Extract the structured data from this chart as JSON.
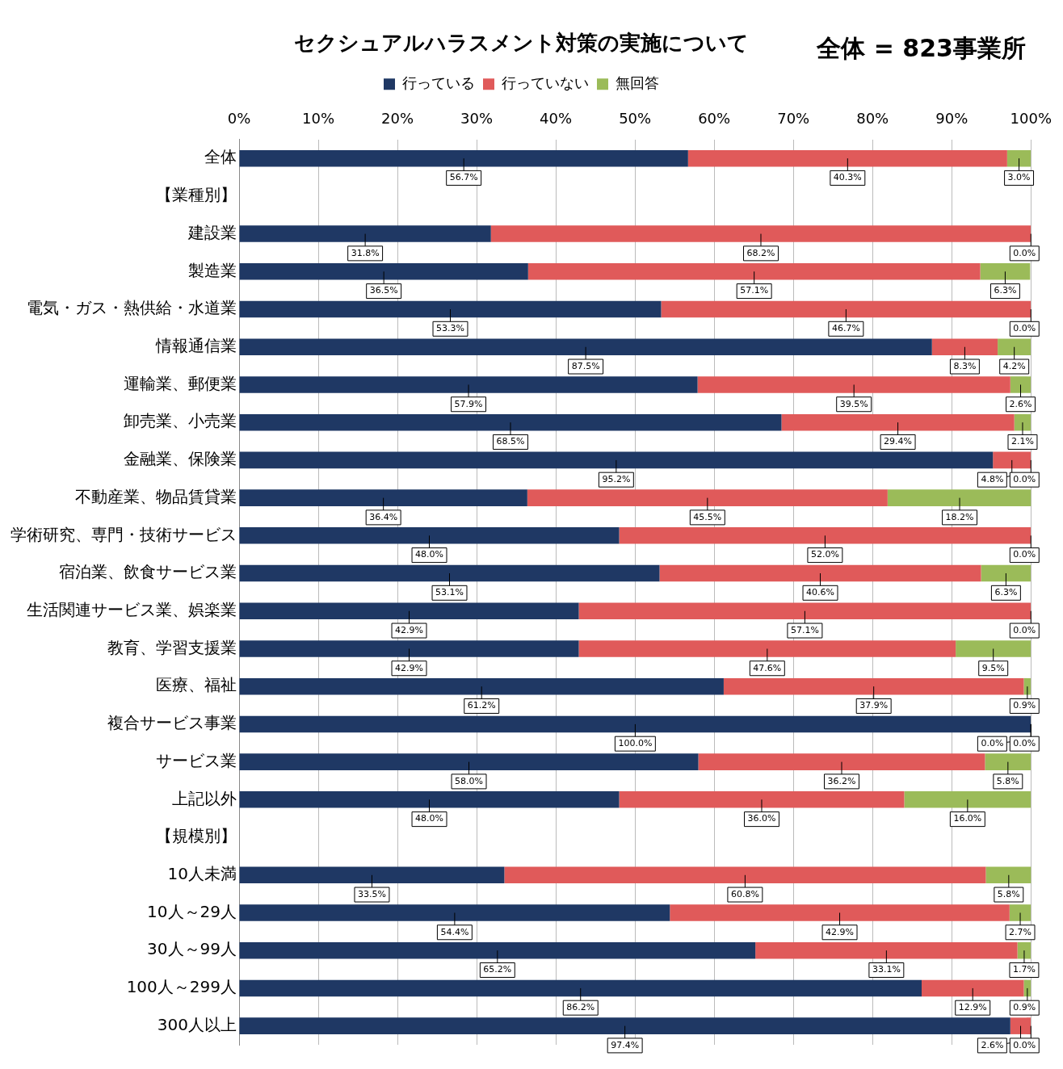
{
  "chart_data": {
    "type": "bar",
    "orientation": "horizontal",
    "stacked": true,
    "title": "セクシュアルハラスメント対策の実施について",
    "annotations": [
      "全体 = 823事業所"
    ],
    "categories": [
      "全体",
      "【業種別】",
      "建設業",
      "製造業",
      "電気・ガス・熱供給・水道業",
      "情報通信業",
      "運輸業、郵便業",
      "卸売業、小売業",
      "金融業、保険業",
      "不動産業、物品賃貸業",
      "学術研究、専門・技術サービス",
      "宿泊業、飲食サービス業",
      "生活関連サービス業、娯楽業",
      "教育、学習支援業",
      "医療、福祉",
      "複合サービス事業",
      "サービス業",
      "上記以外",
      "【規模別】",
      "10人未満",
      "10人～29人",
      "30人～99人",
      "100人～299人",
      "300人以上"
    ],
    "series": [
      {
        "name": "行っている",
        "color": "#1f3864",
        "values": [
          56.7,
          null,
          31.8,
          36.5,
          53.3,
          87.5,
          57.9,
          68.5,
          95.2,
          36.4,
          48.0,
          53.1,
          42.9,
          42.9,
          61.2,
          100.0,
          58.0,
          48.0,
          null,
          33.5,
          54.4,
          65.2,
          86.2,
          97.4
        ],
        "value_labels": [
          "56.7%",
          null,
          "31.8%",
          "36.5%",
          "53.3%",
          "87.5%",
          "57.9%",
          "68.5%",
          "95.2%",
          "36.4%",
          "48.0%",
          "53.1%",
          "42.9%",
          "42.9%",
          "61.2%",
          "100.0%",
          "58.0%",
          "48.0%",
          null,
          "33.5%",
          "54.4%",
          "65.2%",
          "86.2%",
          "97.4%"
        ]
      },
      {
        "name": "行っていない",
        "color": "#e05a5a",
        "values": [
          40.3,
          null,
          68.2,
          57.1,
          46.7,
          8.3,
          39.5,
          29.4,
          4.8,
          45.5,
          52.0,
          40.6,
          57.1,
          47.6,
          37.9,
          0.0,
          36.2,
          36.0,
          null,
          60.8,
          42.9,
          33.1,
          12.9,
          2.6
        ],
        "value_labels": [
          "40.3%",
          null,
          "68.2%",
          "57.1%",
          "46.7%",
          "8.3%",
          "39.5%",
          "29.4%",
          "4.8%",
          "45.5%",
          "52.0%",
          "40.6%",
          "57.1%",
          "47.6%",
          "37.9%",
          "0.0%",
          "36.2%",
          "36.0%",
          null,
          "60.8%",
          "42.9%",
          "33.1%",
          "12.9%",
          "2.6%"
        ]
      },
      {
        "name": "無回答",
        "color": "#9bbb59",
        "values": [
          3.0,
          null,
          0.0,
          6.3,
          0.0,
          4.2,
          2.6,
          2.1,
          0.0,
          18.2,
          0.0,
          6.3,
          0.0,
          9.5,
          0.9,
          0.0,
          5.8,
          16.0,
          null,
          5.8,
          2.7,
          1.7,
          0.9,
          0.0
        ],
        "value_labels": [
          "3.0%",
          null,
          "0.0%",
          "6.3%",
          "0.0%",
          "4.2%",
          "2.6%",
          "2.1%",
          "0.0%",
          "18.2%",
          "0.0%",
          "6.3%",
          "0.0%",
          "9.5%",
          "0.9%",
          "0.0%",
          "5.8%",
          "16.0%",
          null,
          "5.8%",
          "2.7%",
          "1.7%",
          "0.9%",
          "0.0%"
        ]
      }
    ],
    "xlim": [
      0,
      100
    ],
    "xticks": [
      {
        "value": 0,
        "label": "0%"
      },
      {
        "value": 10,
        "label": "10%"
      },
      {
        "value": 20,
        "label": "20%"
      },
      {
        "value": 30,
        "label": "30%"
      },
      {
        "value": 40,
        "label": "40%"
      },
      {
        "value": 50,
        "label": "50%"
      },
      {
        "value": 60,
        "label": "60%"
      },
      {
        "value": 70,
        "label": "70%"
      },
      {
        "value": 80,
        "label": "80%"
      },
      {
        "value": 90,
        "label": "90%"
      },
      {
        "value": 100,
        "label": "100%"
      }
    ],
    "grid": "x",
    "legend": "top"
  }
}
